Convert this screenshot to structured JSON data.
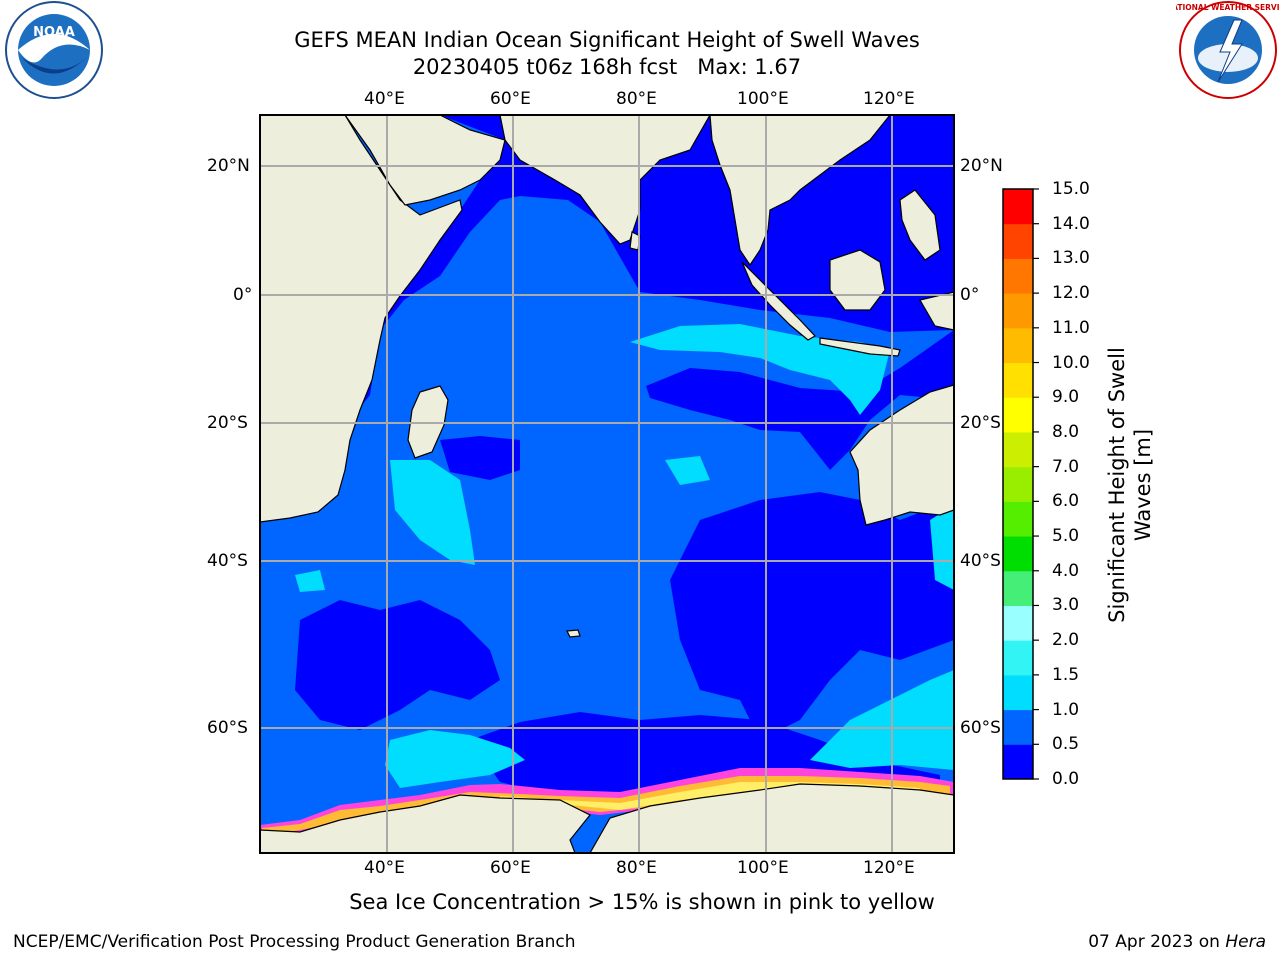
{
  "title_line1": "GEFS MEAN Indian Ocean Significant Height of Swell Waves",
  "title_line2": "20230405 t06z 168h fcst   Max: 1.67",
  "caption": "Sea Ice Concentration > 15% is shown in pink to yellow",
  "footer_left": "NCEP/EMC/Verification Post Processing Product Generation Branch",
  "footer_date": "07 Apr 2023 on ",
  "footer_host": "Hera",
  "lon_labels": [
    "40°E",
    "60°E",
    "80°E",
    "100°E",
    "120°E"
  ],
  "lat_labels": [
    "20°N",
    "0°",
    "20°S",
    "40°S",
    "60°S"
  ],
  "colorbar": {
    "label": "Significant Height of Swell Waves [m]",
    "ticks": [
      "0.0",
      "0.5",
      "1.0",
      "1.5",
      "2.0",
      "3.0",
      "4.0",
      "5.0",
      "6.0",
      "7.0",
      "8.0",
      "9.0",
      "10.0",
      "11.0",
      "12.0",
      "13.0",
      "14.0",
      "15.0"
    ],
    "colors": [
      "#0000ff",
      "#0066ff",
      "#00ddff",
      "#33f4f4",
      "#99ffff",
      "#44ee77",
      "#00dd00",
      "#55ee00",
      "#99ee00",
      "#ccee00",
      "#ffff00",
      "#ffe000",
      "#ffbb00",
      "#ff9900",
      "#ff7700",
      "#ff4400",
      "#ff0000"
    ]
  },
  "logos": {
    "left": "NOAA",
    "right": "NATIONAL WEATHER SERVICE"
  },
  "map": {
    "land_color": "#eeeedd",
    "deep_color": "#0000ff",
    "mid_color": "#0066ff",
    "light_color": "#00ddff",
    "ice_colors": [
      "#ff44dd",
      "#ffbb33",
      "#ffee66"
    ]
  }
}
